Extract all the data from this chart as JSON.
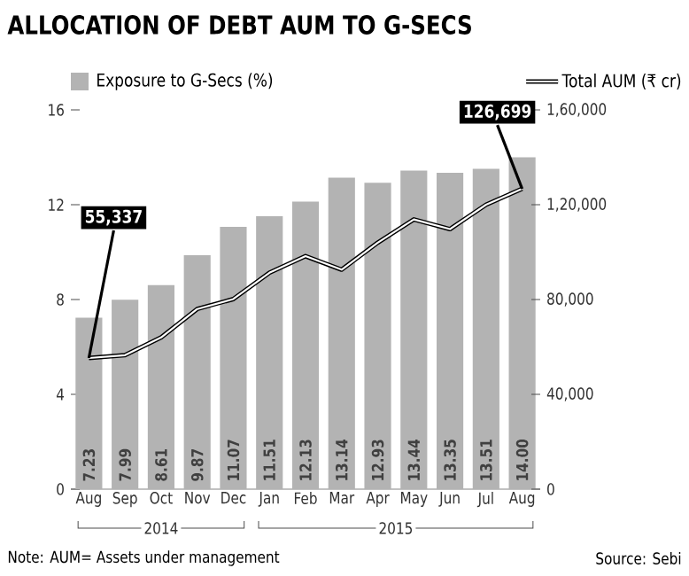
{
  "chart_data": {
    "type": "bar",
    "title": "ALLOCATION OF DEBT AUM TO G-SECS",
    "categories": [
      "Aug",
      "Sep",
      "Oct",
      "Nov",
      "Dec",
      "Jan",
      "Feb",
      "Mar",
      "Apr",
      "May",
      "Jun",
      "Jul",
      "Aug"
    ],
    "series": [
      {
        "name": "Exposure to G-Secs (%)",
        "color": "#b3b3b3",
        "values": [
          7.23,
          7.99,
          8.61,
          9.87,
          11.07,
          11.51,
          12.13,
          13.14,
          12.93,
          13.44,
          13.35,
          13.51,
          14.0
        ],
        "value_labels": [
          "7.23",
          "7.99",
          "8.61",
          "9.87",
          "11.07",
          "11.51",
          "12.13",
          "13.14",
          "12.93",
          "13.44",
          "13.35",
          "13.51",
          "14.00"
        ]
      },
      {
        "name": "Total AUM (₹ cr)",
        "type": "line",
        "axis": "y2",
        "color": "#000000",
        "values": [
          55337,
          56500,
          64000,
          76000,
          80200,
          91300,
          98300,
          92600,
          104000,
          113800,
          109700,
          120000,
          126699
        ],
        "value_labels": [
          "55,337",
          null,
          null,
          null,
          null,
          null,
          null,
          null,
          null,
          null,
          null,
          null,
          "126,699"
        ]
      }
    ],
    "ylim": [
      0,
      16
    ],
    "yticks": [
      0,
      4,
      8,
      12,
      16
    ],
    "y2lim": [
      0,
      160000
    ],
    "y2ticks": [
      0,
      {
        "value": 40000,
        "label": "40,000"
      },
      {
        "value": 80000,
        "label": "80,000"
      },
      {
        "value": 120000,
        "label": "1,20,000"
      },
      {
        "value": 160000,
        "label": "1,60,000"
      }
    ],
    "legend": "top",
    "annotations": [
      "2014",
      "2015",
      "Note: AUM= Assets under management",
      "Source: Sebi"
    ]
  }
}
